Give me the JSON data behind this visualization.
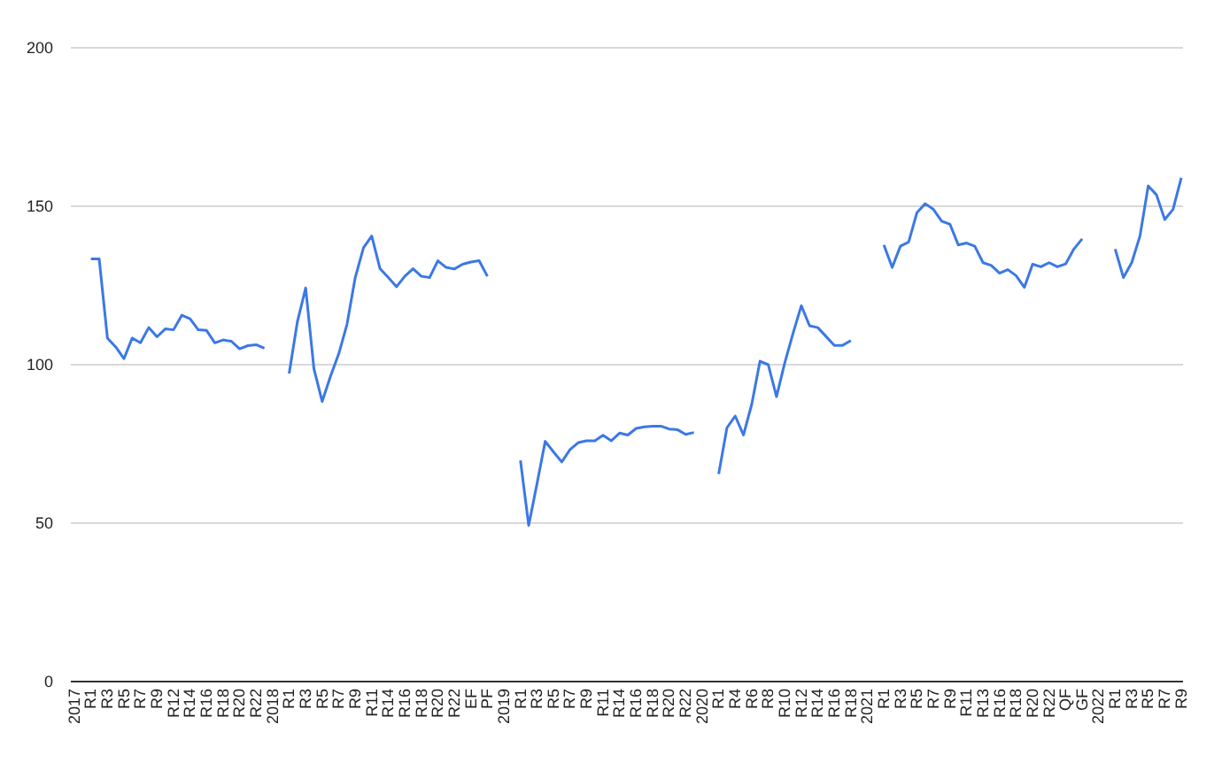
{
  "chart_data": {
    "type": "line",
    "categories": [
      "2017",
      null,
      "R1",
      null,
      "R3",
      null,
      "R5",
      null,
      "R7",
      null,
      "R9",
      null,
      "R12",
      null,
      "R14",
      null,
      "R16",
      null,
      "R18",
      null,
      "R20",
      null,
      "R22",
      null,
      "2018",
      null,
      "R1",
      null,
      "R3",
      null,
      "R5",
      null,
      "R7",
      null,
      "R9",
      null,
      "R11",
      null,
      "R14",
      null,
      "R16",
      null,
      "R18",
      null,
      "R20",
      null,
      "R22",
      null,
      "EF",
      null,
      "PF",
      null,
      "2019",
      null,
      "R1",
      null,
      "R3",
      null,
      "R5",
      null,
      "R7",
      null,
      "R9",
      null,
      "R11",
      null,
      "R14",
      null,
      "R16",
      null,
      "R18",
      null,
      "R20",
      null,
      "R22",
      null,
      "2020",
      null,
      "R1",
      null,
      "R4",
      null,
      "R6",
      null,
      "R8",
      null,
      "R10",
      null,
      "R12",
      null,
      "R14",
      null,
      "R16",
      null,
      "R18",
      null,
      "2021",
      null,
      "R1",
      null,
      "R3",
      null,
      "R5",
      null,
      "R7",
      null,
      "R9",
      null,
      "R11",
      null,
      "R13",
      null,
      "R16",
      null,
      "R18",
      null,
      "R20",
      null,
      "R22",
      null,
      "QF",
      null,
      "GF",
      null,
      "2022",
      null,
      "R1",
      null,
      "R3",
      null,
      "R5",
      null,
      "R7",
      null,
      "R9"
    ],
    "series": [
      {
        "color": "#3b78e7",
        "values": [
          null,
          null,
          133.4,
          133.4,
          108.4,
          105.6,
          101.9,
          108.4,
          106.9,
          111.7,
          108.8,
          111.3,
          111,
          115.6,
          114.5,
          111,
          110.8,
          106.9,
          107.8,
          107.4,
          105,
          106,
          106.3,
          105.2,
          null,
          null,
          97.2,
          113.6,
          124.2,
          98.7,
          88.4,
          96.3,
          103.4,
          112.7,
          127.5,
          136.9,
          140.6,
          130.3,
          127.5,
          124.6,
          127.9,
          130.3,
          127.9,
          127.5,
          132.8,
          130.7,
          130.2,
          131.7,
          132.4,
          132.8,
          127.9,
          null,
          null,
          null,
          69.8,
          49.3,
          62.4,
          75.8,
          72.5,
          69.3,
          73.2,
          75.4,
          76,
          76,
          77.7,
          76,
          78.4,
          77.8,
          79.9,
          80.4,
          80.6,
          80.6,
          79.7,
          79.5,
          78,
          78.6,
          null,
          null,
          65.5,
          80.1,
          83.8,
          77.8,
          87.5,
          101.1,
          100,
          89.9,
          100.6,
          109.9,
          118.6,
          112.3,
          111.7,
          108.9,
          106.1,
          106.1,
          107.6,
          null,
          null,
          null,
          137.8,
          130.7,
          137.4,
          138.7,
          148,
          150.8,
          149,
          145.3,
          144.3,
          137.8,
          138.4,
          137.4,
          132.2,
          131.3,
          128.9,
          130,
          128.1,
          124.4,
          131.7,
          130.9,
          132.2,
          130.9,
          131.8,
          136.5,
          139.7,
          null,
          null,
          null,
          136.5,
          127.5,
          132.2,
          140.6,
          156.4,
          153.6,
          145.8,
          149,
          159
        ]
      }
    ],
    "ylim": [
      0,
      200
    ],
    "yticks": [
      0,
      50,
      100,
      150,
      200
    ],
    "grid": true,
    "legend": false,
    "marker": "none",
    "line_style": "solid"
  }
}
